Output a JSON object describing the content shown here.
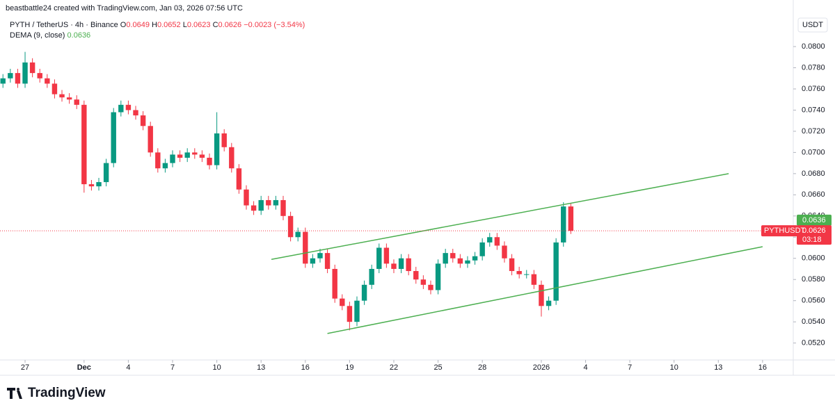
{
  "chart_data": {
    "type": "candlestick",
    "title": "beastbattle24 created with TradingView.com, Jan 03, 2026 07:56 UTC",
    "symbol_line": "PYTH / TetherUS · 4h · Binance",
    "ohlc_labels": [
      "O",
      "H",
      "L",
      "C"
    ],
    "ohlc_values": [
      0.0649,
      0.0652,
      0.0623,
      0.0626
    ],
    "change": {
      "value": -0.0023,
      "label": "−0.0023"
    },
    "change_pct": {
      "value": -3.54,
      "label": "(−3.54%)"
    },
    "indicator": "DEMA (9, close)",
    "indicator_value": 0.0636,
    "indicator_color": "#4caf50",
    "currency": "USDT",
    "symbol_tag": "PYTHUSDT",
    "countdown": "03:18",
    "brand": "TradingView",
    "up_color": "#089981",
    "down_color": "#f23645",
    "grid": false,
    "x": [
      -1.5,
      -1,
      -0.5,
      0,
      0.5,
      1,
      1.5,
      2,
      2.5,
      3,
      3.5,
      4,
      4.5,
      5,
      5.5,
      6,
      6.5,
      7,
      7.5,
      8,
      8.5,
      9,
      9.5,
      10,
      10.5,
      11,
      11.5,
      12,
      12.5,
      13,
      13.5,
      14,
      14.5,
      15,
      15.5,
      16,
      16.5,
      17,
      17.5,
      18,
      18.5,
      19,
      19.5,
      20,
      20.5,
      21,
      21.5,
      22,
      22.5,
      23,
      23.5,
      24,
      24.5,
      25,
      25.5,
      26,
      26.5,
      27,
      27.5,
      28,
      28.5,
      29,
      29.5,
      30,
      30.5,
      31,
      31.5,
      32,
      32.5,
      33,
      33.5,
      34,
      34.5,
      35,
      35.5,
      36,
      36.5,
      37
    ],
    "open": [
      0.0765,
      0.077,
      0.0775,
      0.0765,
      0.0785,
      0.0775,
      0.077,
      0.0765,
      0.0755,
      0.0752,
      0.075,
      0.0745,
      0.067,
      0.0668,
      0.0672,
      0.069,
      0.0738,
      0.0745,
      0.074,
      0.0735,
      0.0725,
      0.07,
      0.0685,
      0.069,
      0.0698,
      0.0695,
      0.07,
      0.0698,
      0.0695,
      0.0688,
      0.0718,
      0.0705,
      0.0685,
      0.0665,
      0.065,
      0.0645,
      0.0655,
      0.065,
      0.0655,
      0.064,
      0.062,
      0.0625,
      0.0595,
      0.06,
      0.0605,
      0.059,
      0.0562,
      0.0555,
      0.054,
      0.056,
      0.0575,
      0.059,
      0.061,
      0.0595,
      0.059,
      0.06,
      0.0588,
      0.058,
      0.0575,
      0.057,
      0.0595,
      0.0605,
      0.06,
      0.0595,
      0.0598,
      0.0602,
      0.0615,
      0.062,
      0.0612,
      0.06,
      0.0588,
      0.0585,
      0.0585,
      0.0575,
      0.0555,
      0.056,
      0.0615,
      0.0649
    ],
    "high": [
      0.0774,
      0.0779,
      0.0779,
      0.0795,
      0.0789,
      0.0779,
      0.0774,
      0.0769,
      0.0759,
      0.0756,
      0.0754,
      0.0749,
      0.0674,
      0.0676,
      0.0694,
      0.0742,
      0.0749,
      0.0749,
      0.0744,
      0.0739,
      0.0729,
      0.0704,
      0.0694,
      0.0702,
      0.0702,
      0.0704,
      0.0704,
      0.0702,
      0.0699,
      0.0738,
      0.0722,
      0.0709,
      0.0689,
      0.0669,
      0.0654,
      0.0659,
      0.0659,
      0.0659,
      0.0659,
      0.0644,
      0.0629,
      0.0629,
      0.0604,
      0.0609,
      0.0609,
      0.0594,
      0.0566,
      0.0559,
      0.0564,
      0.0579,
      0.0594,
      0.0614,
      0.0614,
      0.0599,
      0.0604,
      0.0604,
      0.0592,
      0.0584,
      0.0579,
      0.0599,
      0.0609,
      0.0609,
      0.0604,
      0.0602,
      0.0606,
      0.0619,
      0.0624,
      0.0624,
      0.0616,
      0.0604,
      0.0592,
      0.0589,
      0.0589,
      0.0579,
      0.0564,
      0.0619,
      0.0653,
      0.0652
    ],
    "low": [
      0.0761,
      0.0766,
      0.0761,
      0.0761,
      0.0771,
      0.0766,
      0.0761,
      0.0751,
      0.0748,
      0.0746,
      0.0741,
      0.0662,
      0.0664,
      0.0664,
      0.0668,
      0.0686,
      0.0734,
      0.0736,
      0.0731,
      0.0721,
      0.0696,
      0.0681,
      0.0681,
      0.0686,
      0.0691,
      0.0691,
      0.0694,
      0.0691,
      0.0684,
      0.0684,
      0.0701,
      0.0681,
      0.0661,
      0.0646,
      0.0641,
      0.0641,
      0.0646,
      0.0646,
      0.0636,
      0.0616,
      0.0616,
      0.0591,
      0.0591,
      0.0596,
      0.0586,
      0.0558,
      0.0551,
      0.0532,
      0.0536,
      0.0556,
      0.0571,
      0.0586,
      0.0591,
      0.0586,
      0.0586,
      0.0584,
      0.0576,
      0.0571,
      0.0566,
      0.0566,
      0.0591,
      0.0596,
      0.0591,
      0.0591,
      0.0594,
      0.0598,
      0.0611,
      0.0608,
      0.0596,
      0.0584,
      0.0581,
      0.0581,
      0.0571,
      0.0545,
      0.0551,
      0.0556,
      0.0611,
      0.0623
    ],
    "close": [
      0.077,
      0.0775,
      0.0765,
      0.0785,
      0.0775,
      0.077,
      0.0765,
      0.0755,
      0.0752,
      0.075,
      0.0745,
      0.067,
      0.0668,
      0.0672,
      0.069,
      0.0738,
      0.0745,
      0.074,
      0.0735,
      0.0725,
      0.07,
      0.0685,
      0.069,
      0.0698,
      0.0695,
      0.07,
      0.0698,
      0.0695,
      0.0688,
      0.0718,
      0.0705,
      0.0685,
      0.0665,
      0.065,
      0.0645,
      0.0655,
      0.065,
      0.0655,
      0.064,
      0.062,
      0.0625,
      0.0595,
      0.06,
      0.0605,
      0.059,
      0.0562,
      0.0555,
      0.054,
      0.056,
      0.0575,
      0.059,
      0.061,
      0.0595,
      0.059,
      0.06,
      0.0588,
      0.058,
      0.0575,
      0.057,
      0.0595,
      0.0605,
      0.06,
      0.0595,
      0.0598,
      0.0602,
      0.0615,
      0.062,
      0.0612,
      0.06,
      0.0588,
      0.0585,
      0.0585,
      0.0575,
      0.0555,
      0.056,
      0.0615,
      0.0649,
      0.0626
    ],
    "trendlines": [
      {
        "x": [
          16.7,
          47.7
        ],
        "y": [
          0.0599,
          0.068
        ]
      },
      {
        "x": [
          20.5,
          50
        ],
        "y": [
          0.0529,
          0.0611
        ]
      }
    ],
    "trendline_color": "#4caf50",
    "xlim": [
      -1.7,
      52.08
    ],
    "ylim": [
      0.0504,
      0.0844
    ],
    "xticks": [
      {
        "value": 0,
        "label": "27"
      },
      {
        "value": 4,
        "label": "Dec"
      },
      {
        "value": 7,
        "label": "4"
      },
      {
        "value": 10,
        "label": "7"
      },
      {
        "value": 13,
        "label": "10"
      },
      {
        "value": 16,
        "label": "13"
      },
      {
        "value": 19,
        "label": "16"
      },
      {
        "value": 22,
        "label": "19"
      },
      {
        "value": 25,
        "label": "22"
      },
      {
        "value": 28,
        "label": "25"
      },
      {
        "value": 31,
        "label": "28"
      },
      {
        "value": 35,
        "label": "2026"
      },
      {
        "value": 38,
        "label": "4"
      },
      {
        "value": 41,
        "label": "7"
      },
      {
        "value": 44,
        "label": "10"
      },
      {
        "value": 47,
        "label": "13"
      },
      {
        "value": 50,
        "label": "16"
      }
    ],
    "yticks": [
      {
        "value": 0.052,
        "label": "0.0520"
      },
      {
        "value": 0.054,
        "label": "0.0540"
      },
      {
        "value": 0.056,
        "label": "0.0560"
      },
      {
        "value": 0.058,
        "label": "0.0580"
      },
      {
        "value": 0.06,
        "label": "0.0600"
      },
      {
        "value": 0.062,
        "label": "0.0620"
      },
      {
        "value": 0.064,
        "label": "0.0640"
      },
      {
        "value": 0.066,
        "label": "0.0660"
      },
      {
        "value": 0.068,
        "label": "0.0680"
      },
      {
        "value": 0.07,
        "label": "0.0700"
      },
      {
        "value": 0.072,
        "label": "0.0720"
      },
      {
        "value": 0.074,
        "label": "0.0740"
      },
      {
        "value": 0.076,
        "label": "0.0760"
      },
      {
        "value": 0.078,
        "label": "0.0780"
      },
      {
        "value": 0.08,
        "label": "0.0800"
      }
    ]
  }
}
